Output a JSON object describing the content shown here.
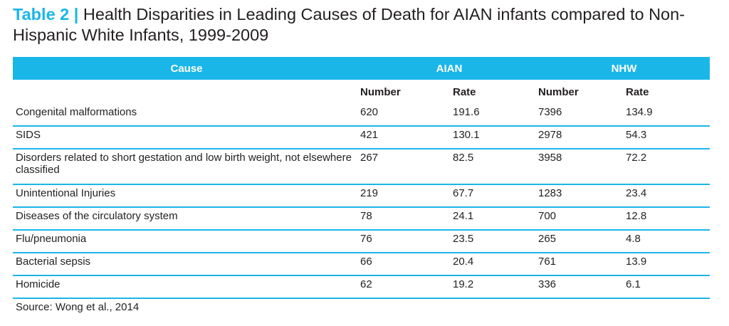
{
  "title": {
    "label": "Table 2 |",
    "text": " Health Disparities in Leading Causes of Death for AIAN infants compared to Non-Hispanic White Infants, 1999-2009"
  },
  "table": {
    "headers": {
      "cause": "Cause",
      "aian": "AIAN",
      "nhw": "NHW"
    },
    "subheaders": {
      "aian_number": "Number",
      "aian_rate": "Rate",
      "nhw_number": "Number",
      "nhw_rate": "Rate"
    },
    "rows": [
      {
        "cause": "Congenital malformations",
        "aian_number": "620",
        "aian_rate": "191.6",
        "nhw_number": "7396",
        "nhw_rate": "134.9"
      },
      {
        "cause": "SIDS",
        "aian_number": "421",
        "aian_rate": "130.1",
        "nhw_number": "2978",
        "nhw_rate": "54.3"
      },
      {
        "cause": "Disorders related to short gestation and low birth weight, not elsewhere classified",
        "aian_number": "267",
        "aian_rate": "82.5",
        "nhw_number": "3958",
        "nhw_rate": "72.2"
      },
      {
        "cause": "Unintentional Injuries",
        "aian_number": "219",
        "aian_rate": "67.7",
        "nhw_number": "1283",
        "nhw_rate": "23.4"
      },
      {
        "cause": "Diseases of the circulatory system",
        "aian_number": "78",
        "aian_rate": "24.1",
        "nhw_number": "700",
        "nhw_rate": "12.8"
      },
      {
        "cause": "Flu/pneumonia",
        "aian_number": "76",
        "aian_rate": "23.5",
        "nhw_number": "265",
        "nhw_rate": "4.8"
      },
      {
        "cause": "Bacterial sepsis",
        "aian_number": "66",
        "aian_rate": "20.4",
        "nhw_number": "761",
        "nhw_rate": "13.9"
      },
      {
        "cause": "Homicide",
        "aian_number": "62",
        "aian_rate": "19.2",
        "nhw_number": "336",
        "nhw_rate": "6.1"
      }
    ]
  },
  "source": "Source: Wong et al., 2014",
  "colors": {
    "accent": "#1ab6e8",
    "text": "#231f20"
  }
}
